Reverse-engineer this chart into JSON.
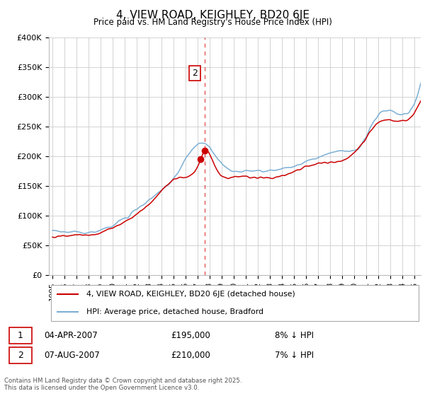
{
  "title": "4, VIEW ROAD, KEIGHLEY, BD20 6JE",
  "subtitle": "Price paid vs. HM Land Registry's House Price Index (HPI)",
  "ylim": [
    0,
    400000
  ],
  "yticks": [
    0,
    50000,
    100000,
    150000,
    200000,
    250000,
    300000,
    350000,
    400000
  ],
  "ytick_labels": [
    "£0",
    "£50K",
    "£100K",
    "£150K",
    "£200K",
    "£250K",
    "£300K",
    "£350K",
    "£400K"
  ],
  "xlim_start": 1994.7,
  "xlim_end": 2025.5,
  "legend_line1": "4, VIEW ROAD, KEIGHLEY, BD20 6JE (detached house)",
  "legend_line2": "HPI: Average price, detached house, Bradford",
  "sale1_date": "04-APR-2007",
  "sale1_price": 195000,
  "sale1_label": "8% ↓ HPI",
  "sale2_date": "07-AUG-2007",
  "sale2_price": 210000,
  "sale2_label": "7% ↓ HPI",
  "sale1_x": 2007.25,
  "sale2_x": 2007.58,
  "copyright_text": "Contains HM Land Registry data © Crown copyright and database right 2025.\nThis data is licensed under the Open Government Licence v3.0.",
  "line_color_red": "#cc0000",
  "line_color_blue": "#7bafd4",
  "dashed_line_color": "#dd4444",
  "background_color": "#ffffff",
  "grid_color": "#cccccc"
}
